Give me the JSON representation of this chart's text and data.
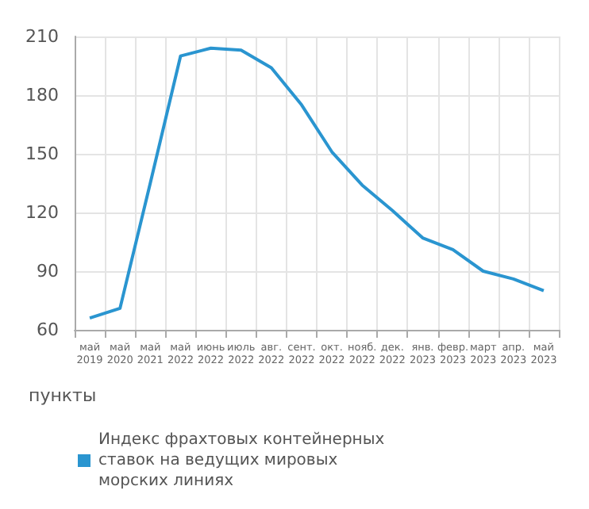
{
  "chart_data": {
    "type": "line",
    "ylabel": "пункты",
    "categories": [
      "май 2019",
      "май 2020",
      "май 2021",
      "май 2022",
      "июнь 2022",
      "июль 2022",
      "авг. 2022",
      "сент. 2022",
      "окт. 2022",
      "нояб. 2022",
      "дек. 2022",
      "янв. 2023",
      "февр. 2023",
      "март 2023",
      "апр. 2023",
      "май 2023"
    ],
    "series": [
      {
        "name": "Индекс фрахтовых контейнерных ставок на ведущих мировых морских линиях",
        "color": "#2a95d0",
        "values": [
          66,
          71,
          135,
          200,
          204,
          203,
          194,
          175,
          151,
          134,
          121,
          107,
          101,
          90,
          86,
          80
        ]
      }
    ],
    "ylim": [
      60,
      210
    ],
    "yticks": [
      60,
      90,
      120,
      150,
      180,
      210
    ],
    "grid": true,
    "legend": "bottom left",
    "marker": "none",
    "line_style": "solid"
  }
}
